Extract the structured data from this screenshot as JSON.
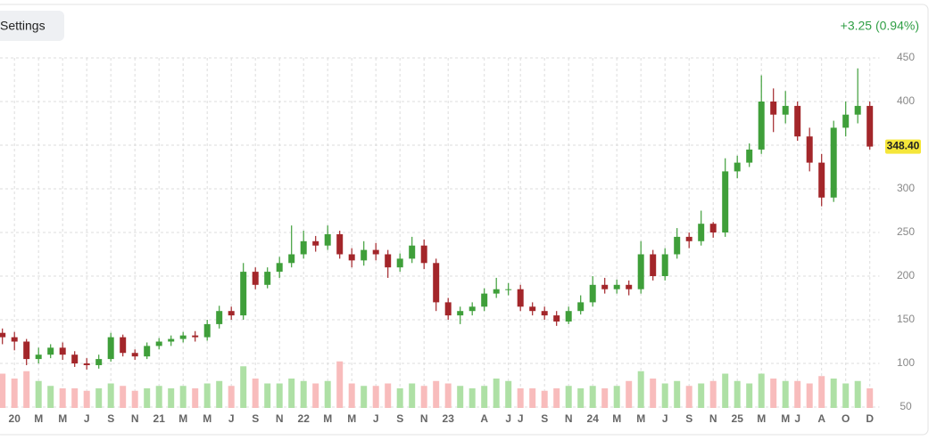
{
  "header": {
    "button": "Settings",
    "change": "+3.25 (0.94%)"
  },
  "chart_data": {
    "type": "candlestick",
    "x": [
      -1,
      0,
      1,
      2,
      3,
      4,
      5,
      6,
      7,
      8,
      9,
      10,
      11,
      12,
      13,
      14,
      15,
      16,
      17,
      18,
      19,
      20,
      21,
      22,
      23,
      24,
      25,
      26,
      27,
      28,
      29,
      30,
      31,
      32,
      33,
      34,
      35,
      36,
      37,
      38,
      39,
      40,
      41,
      42,
      43,
      44,
      45,
      46,
      47,
      48,
      49,
      50,
      51,
      52,
      53,
      54,
      55,
      56,
      57,
      58,
      59,
      60,
      61,
      62,
      63,
      64,
      65,
      66,
      67,
      68,
      69,
      70,
      71
    ],
    "open": [
      135,
      130,
      125,
      105,
      110,
      118,
      110,
      100,
      98,
      105,
      130,
      112,
      108,
      120,
      125,
      128,
      132,
      130,
      145,
      160,
      155,
      205,
      190,
      205,
      215,
      225,
      240,
      235,
      248,
      225,
      218,
      230,
      225,
      210,
      220,
      235,
      215,
      170,
      155,
      160,
      165,
      180,
      185,
      185,
      165,
      160,
      155,
      148,
      160,
      170,
      190,
      185,
      190,
      185,
      225,
      200,
      225,
      245,
      240,
      260,
      250,
      320,
      330,
      345,
      400,
      385,
      395,
      360,
      330,
      290,
      370,
      385,
      395
    ],
    "high": [
      140,
      136,
      128,
      118,
      122,
      124,
      114,
      106,
      110,
      135,
      133,
      116,
      124,
      129,
      132,
      136,
      137,
      150,
      166,
      165,
      215,
      210,
      210,
      222,
      258,
      252,
      246,
      258,
      252,
      232,
      240,
      238,
      230,
      226,
      245,
      242,
      220,
      175,
      165,
      170,
      186,
      198,
      192,
      190,
      170,
      165,
      160,
      165,
      178,
      200,
      198,
      196,
      195,
      240,
      230,
      232,
      255,
      250,
      275,
      262,
      335,
      338,
      352,
      430,
      415,
      412,
      400,
      370,
      340,
      378,
      400,
      438,
      400
    ],
    "low": [
      122,
      115,
      98,
      100,
      106,
      104,
      96,
      93,
      94,
      102,
      108,
      104,
      105,
      116,
      120,
      124,
      125,
      126,
      140,
      150,
      150,
      185,
      186,
      198,
      210,
      220,
      228,
      230,
      220,
      210,
      212,
      218,
      198,
      205,
      215,
      208,
      160,
      150,
      145,
      155,
      160,
      175,
      178,
      160,
      155,
      150,
      143,
      145,
      156,
      165,
      180,
      180,
      178,
      180,
      195,
      195,
      220,
      232,
      235,
      244,
      245,
      312,
      325,
      340,
      365,
      375,
      355,
      320,
      280,
      285,
      360,
      375,
      345
    ],
    "close": [
      130,
      125,
      105,
      110,
      118,
      110,
      100,
      98,
      105,
      130,
      112,
      108,
      120,
      125,
      128,
      132,
      130,
      145,
      160,
      155,
      205,
      190,
      205,
      215,
      225,
      240,
      235,
      248,
      225,
      218,
      230,
      225,
      210,
      220,
      235,
      215,
      170,
      155,
      160,
      165,
      180,
      185,
      185,
      165,
      160,
      155,
      148,
      160,
      170,
      190,
      185,
      190,
      185,
      225,
      200,
      225,
      245,
      240,
      260,
      250,
      320,
      330,
      345,
      400,
      385,
      395,
      360,
      330,
      290,
      370,
      385,
      395,
      348.4
    ],
    "volume": [
      70,
      60,
      75,
      55,
      45,
      40,
      40,
      35,
      40,
      50,
      45,
      35,
      40,
      45,
      40,
      45,
      40,
      50,
      55,
      45,
      85,
      60,
      50,
      50,
      60,
      55,
      50,
      55,
      95,
      50,
      45,
      45,
      50,
      40,
      50,
      45,
      55,
      50,
      45,
      40,
      45,
      60,
      55,
      40,
      40,
      35,
      40,
      45,
      40,
      45,
      40,
      45,
      55,
      75,
      60,
      50,
      55,
      45,
      50,
      55,
      70,
      55,
      50,
      70,
      60,
      55,
      55,
      50,
      65,
      60,
      50,
      55,
      40
    ],
    "last_label": "348.40",
    "up_color": "#3f9f3a",
    "down_color": "#a3262a",
    "volume_up_color": "#aee0a5",
    "volume_down_color": "#f8bcbc",
    "volume_lim": [
      0,
      100
    ],
    "xlim": [
      -1.2,
      71.8
    ],
    "ylim": [
      50,
      450
    ],
    "yticks": [
      50,
      100,
      150,
      200,
      250,
      300,
      350,
      400,
      450
    ],
    "xticks": [
      {
        "value": 0,
        "label": "20"
      },
      {
        "value": 2,
        "label": "M"
      },
      {
        "value": 4,
        "label": "M"
      },
      {
        "value": 6,
        "label": "J"
      },
      {
        "value": 8,
        "label": "S"
      },
      {
        "value": 10,
        "label": "N"
      },
      {
        "value": 12,
        "label": "21"
      },
      {
        "value": 14,
        "label": "M"
      },
      {
        "value": 16,
        "label": "M"
      },
      {
        "value": 18,
        "label": "J"
      },
      {
        "value": 20,
        "label": "S"
      },
      {
        "value": 22,
        "label": "N"
      },
      {
        "value": 24,
        "label": "22"
      },
      {
        "value": 26,
        "label": "M"
      },
      {
        "value": 28,
        "label": "M"
      },
      {
        "value": 30,
        "label": "J"
      },
      {
        "value": 32,
        "label": "S"
      },
      {
        "value": 34,
        "label": "N"
      },
      {
        "value": 36,
        "label": "23"
      },
      {
        "value": 39,
        "label": "A"
      },
      {
        "value": 41,
        "label": "J"
      },
      {
        "value": 42,
        "label": "J"
      },
      {
        "value": 44,
        "label": "S"
      },
      {
        "value": 46,
        "label": "N"
      },
      {
        "value": 48,
        "label": "24"
      },
      {
        "value": 50,
        "label": "M"
      },
      {
        "value": 52,
        "label": "M"
      },
      {
        "value": 54,
        "label": "J"
      },
      {
        "value": 56,
        "label": "S"
      },
      {
        "value": 58,
        "label": "N"
      },
      {
        "value": 60,
        "label": "25"
      },
      {
        "value": 62,
        "label": "M"
      },
      {
        "value": 64,
        "label": "M"
      },
      {
        "value": 65,
        "label": "J"
      },
      {
        "value": 67,
        "label": "A"
      },
      {
        "value": 69,
        "label": "O"
      },
      {
        "value": 71,
        "label": "D"
      }
    ],
    "grid": true
  }
}
